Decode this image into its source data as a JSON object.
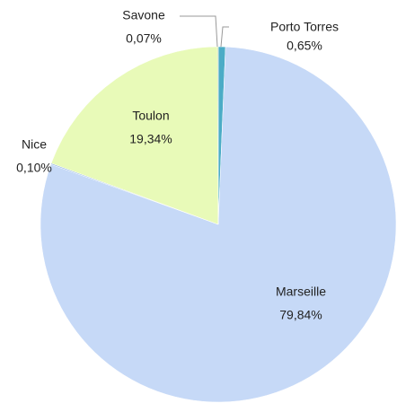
{
  "chart_data": {
    "type": "pie",
    "categories": [
      "Porto Torres",
      "Marseille",
      "Nice",
      "Toulon",
      "Savone"
    ],
    "values": [
      0.65,
      79.84,
      0.1,
      19.34,
      0.07
    ],
    "value_labels": [
      "0,65%",
      "79,84%",
      "0,10%",
      "19,34%",
      "0,07%"
    ],
    "colors": [
      "#4bacc6",
      "#c6d9f7",
      "#8db3e2",
      "#e8fab8",
      "#9bbb59"
    ]
  }
}
